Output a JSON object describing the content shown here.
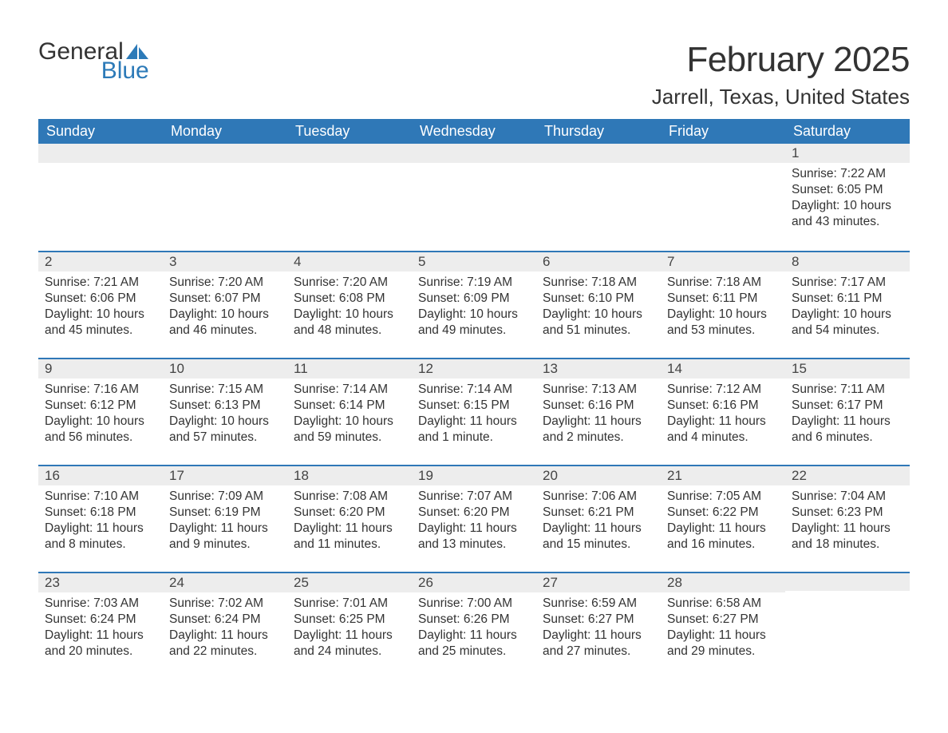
{
  "logo": {
    "text1": "General",
    "text2": "Blue",
    "sail_color": "#2c7ab8"
  },
  "title": "February 2025",
  "location": "Jarrell, Texas, United States",
  "header_bg": "#2f78b7",
  "header_fg": "#ffffff",
  "daynum_bg": "#ededed",
  "border_color": "#2f78b7",
  "text_color": "#333333",
  "day_headers": [
    "Sunday",
    "Monday",
    "Tuesday",
    "Wednesday",
    "Thursday",
    "Friday",
    "Saturday"
  ],
  "first_weekday_index": 6,
  "days_in_month": 28,
  "days": {
    "1": {
      "sunrise": "7:22 AM",
      "sunset": "6:05 PM",
      "daylight": "10 hours and 43 minutes."
    },
    "2": {
      "sunrise": "7:21 AM",
      "sunset": "6:06 PM",
      "daylight": "10 hours and 45 minutes."
    },
    "3": {
      "sunrise": "7:20 AM",
      "sunset": "6:07 PM",
      "daylight": "10 hours and 46 minutes."
    },
    "4": {
      "sunrise": "7:20 AM",
      "sunset": "6:08 PM",
      "daylight": "10 hours and 48 minutes."
    },
    "5": {
      "sunrise": "7:19 AM",
      "sunset": "6:09 PM",
      "daylight": "10 hours and 49 minutes."
    },
    "6": {
      "sunrise": "7:18 AM",
      "sunset": "6:10 PM",
      "daylight": "10 hours and 51 minutes."
    },
    "7": {
      "sunrise": "7:18 AM",
      "sunset": "6:11 PM",
      "daylight": "10 hours and 53 minutes."
    },
    "8": {
      "sunrise": "7:17 AM",
      "sunset": "6:11 PM",
      "daylight": "10 hours and 54 minutes."
    },
    "9": {
      "sunrise": "7:16 AM",
      "sunset": "6:12 PM",
      "daylight": "10 hours and 56 minutes."
    },
    "10": {
      "sunrise": "7:15 AM",
      "sunset": "6:13 PM",
      "daylight": "10 hours and 57 minutes."
    },
    "11": {
      "sunrise": "7:14 AM",
      "sunset": "6:14 PM",
      "daylight": "10 hours and 59 minutes."
    },
    "12": {
      "sunrise": "7:14 AM",
      "sunset": "6:15 PM",
      "daylight": "11 hours and 1 minute."
    },
    "13": {
      "sunrise": "7:13 AM",
      "sunset": "6:16 PM",
      "daylight": "11 hours and 2 minutes."
    },
    "14": {
      "sunrise": "7:12 AM",
      "sunset": "6:16 PM",
      "daylight": "11 hours and 4 minutes."
    },
    "15": {
      "sunrise": "7:11 AM",
      "sunset": "6:17 PM",
      "daylight": "11 hours and 6 minutes."
    },
    "16": {
      "sunrise": "7:10 AM",
      "sunset": "6:18 PM",
      "daylight": "11 hours and 8 minutes."
    },
    "17": {
      "sunrise": "7:09 AM",
      "sunset": "6:19 PM",
      "daylight": "11 hours and 9 minutes."
    },
    "18": {
      "sunrise": "7:08 AM",
      "sunset": "6:20 PM",
      "daylight": "11 hours and 11 minutes."
    },
    "19": {
      "sunrise": "7:07 AM",
      "sunset": "6:20 PM",
      "daylight": "11 hours and 13 minutes."
    },
    "20": {
      "sunrise": "7:06 AM",
      "sunset": "6:21 PM",
      "daylight": "11 hours and 15 minutes."
    },
    "21": {
      "sunrise": "7:05 AM",
      "sunset": "6:22 PM",
      "daylight": "11 hours and 16 minutes."
    },
    "22": {
      "sunrise": "7:04 AM",
      "sunset": "6:23 PM",
      "daylight": "11 hours and 18 minutes."
    },
    "23": {
      "sunrise": "7:03 AM",
      "sunset": "6:24 PM",
      "daylight": "11 hours and 20 minutes."
    },
    "24": {
      "sunrise": "7:02 AM",
      "sunset": "6:24 PM",
      "daylight": "11 hours and 22 minutes."
    },
    "25": {
      "sunrise": "7:01 AM",
      "sunset": "6:25 PM",
      "daylight": "11 hours and 24 minutes."
    },
    "26": {
      "sunrise": "7:00 AM",
      "sunset": "6:26 PM",
      "daylight": "11 hours and 25 minutes."
    },
    "27": {
      "sunrise": "6:59 AM",
      "sunset": "6:27 PM",
      "daylight": "11 hours and 27 minutes."
    },
    "28": {
      "sunrise": "6:58 AM",
      "sunset": "6:27 PM",
      "daylight": "11 hours and 29 minutes."
    }
  },
  "labels": {
    "sunrise": "Sunrise:",
    "sunset": "Sunset:",
    "daylight": "Daylight:"
  }
}
